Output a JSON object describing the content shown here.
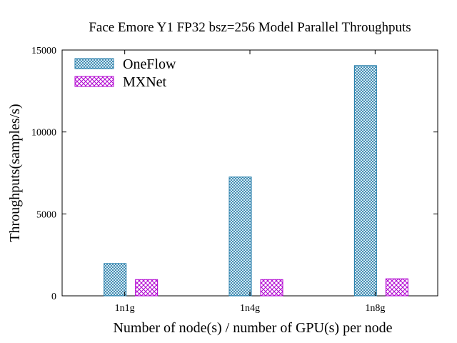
{
  "chart_data": {
    "type": "bar",
    "title": "Face Emore  Y1  FP32 bsz=256 Model Parallel Throughputs",
    "xlabel": "Number of node(s) / number of GPU(s) per node",
    "ylabel": "Throughputs(samples/s)",
    "categories": [
      "1n1g",
      "1n4g",
      "1n8g"
    ],
    "ylim": [
      0,
      15000
    ],
    "yticks": [
      0,
      5000,
      10000,
      15000
    ],
    "grid": false,
    "legend_position": "top-left",
    "series": [
      {
        "name": "OneFlow",
        "values": [
          1970,
          7250,
          14050
        ],
        "color": "#1f7aa8"
      },
      {
        "name": "MXNet",
        "values": [
          990,
          990,
          1040
        ],
        "color": "#b000d0"
      }
    ]
  }
}
